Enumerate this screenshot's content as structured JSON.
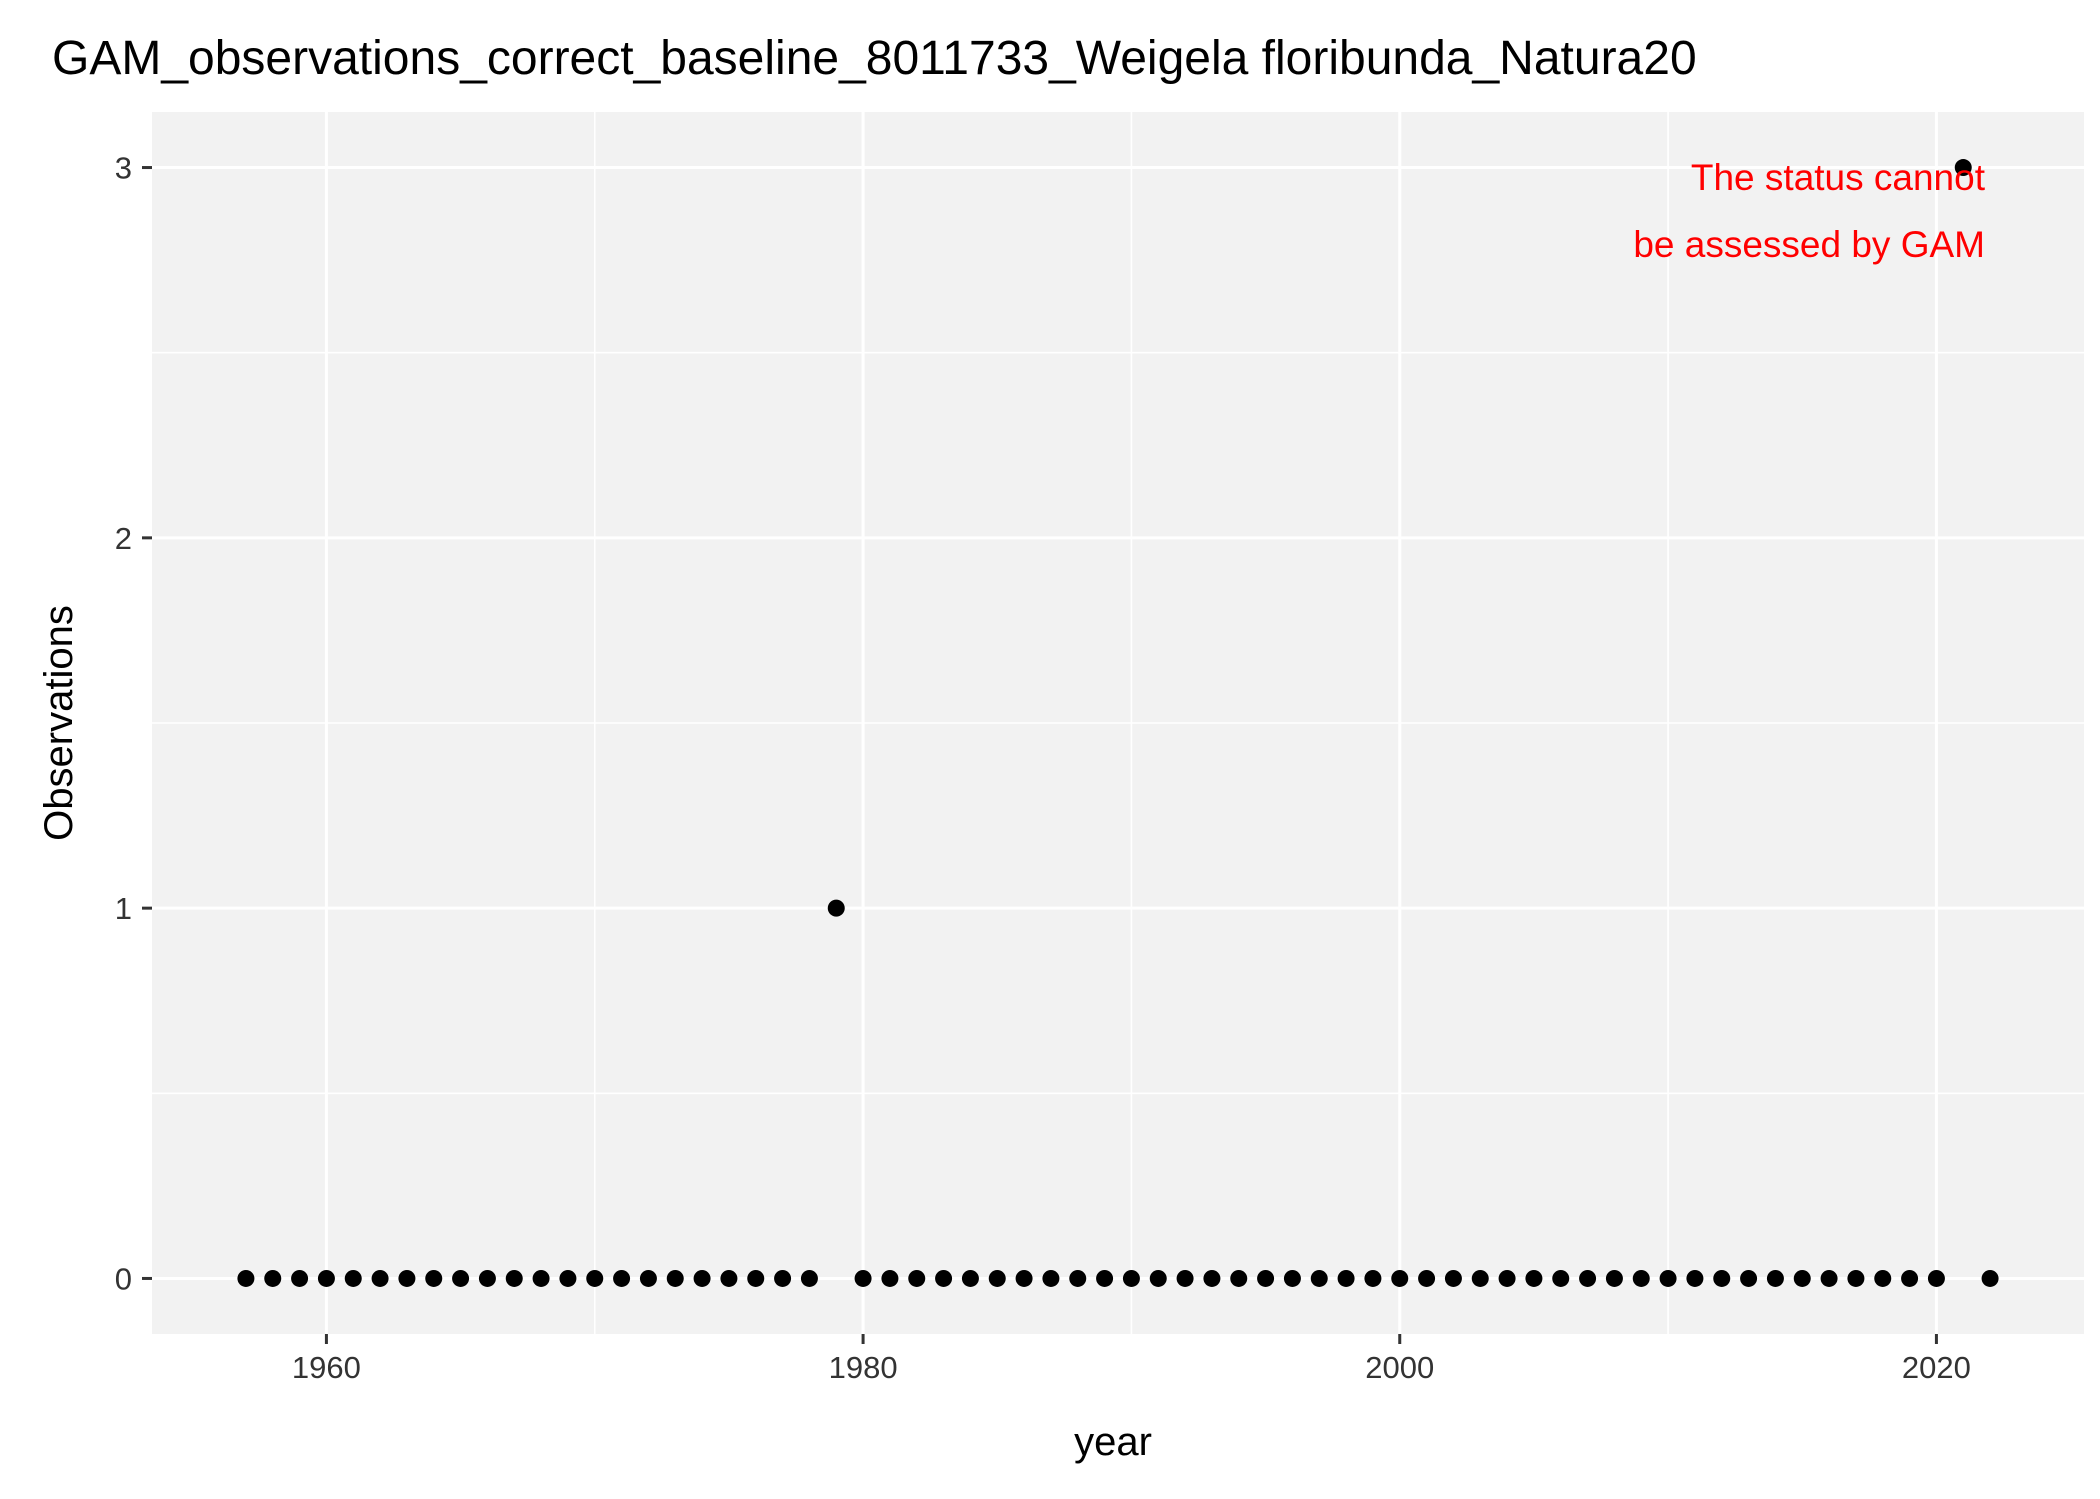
{
  "chart_data": {
    "type": "scatter",
    "title": "GAM_observations_correct_baseline_8011733_Weigela floribunda_Natura20",
    "xlabel": "year",
    "ylabel": "Observations",
    "xlim": [
      1953.5,
      2025.5
    ],
    "ylim": [
      -0.15,
      3.15
    ],
    "x_ticks": [
      1960,
      1980,
      2000,
      2020
    ],
    "x_tick_labels": [
      "1960",
      "1980",
      "2000",
      "2020"
    ],
    "y_ticks": [
      0,
      1,
      2,
      3
    ],
    "y_tick_labels": [
      "0",
      "1",
      "2",
      "3"
    ],
    "grid": true,
    "legend": "none",
    "points": [
      {
        "x": 1957,
        "y": 0
      },
      {
        "x": 1958,
        "y": 0
      },
      {
        "x": 1959,
        "y": 0
      },
      {
        "x": 1960,
        "y": 0
      },
      {
        "x": 1961,
        "y": 0
      },
      {
        "x": 1962,
        "y": 0
      },
      {
        "x": 1963,
        "y": 0
      },
      {
        "x": 1964,
        "y": 0
      },
      {
        "x": 1965,
        "y": 0
      },
      {
        "x": 1966,
        "y": 0
      },
      {
        "x": 1967,
        "y": 0
      },
      {
        "x": 1968,
        "y": 0
      },
      {
        "x": 1969,
        "y": 0
      },
      {
        "x": 1970,
        "y": 0
      },
      {
        "x": 1971,
        "y": 0
      },
      {
        "x": 1972,
        "y": 0
      },
      {
        "x": 1973,
        "y": 0
      },
      {
        "x": 1974,
        "y": 0
      },
      {
        "x": 1975,
        "y": 0
      },
      {
        "x": 1976,
        "y": 0
      },
      {
        "x": 1977,
        "y": 0
      },
      {
        "x": 1978,
        "y": 0
      },
      {
        "x": 1979,
        "y": 1
      },
      {
        "x": 1980,
        "y": 0
      },
      {
        "x": 1981,
        "y": 0
      },
      {
        "x": 1982,
        "y": 0
      },
      {
        "x": 1983,
        "y": 0
      },
      {
        "x": 1984,
        "y": 0
      },
      {
        "x": 1985,
        "y": 0
      },
      {
        "x": 1986,
        "y": 0
      },
      {
        "x": 1987,
        "y": 0
      },
      {
        "x": 1988,
        "y": 0
      },
      {
        "x": 1989,
        "y": 0
      },
      {
        "x": 1990,
        "y": 0
      },
      {
        "x": 1991,
        "y": 0
      },
      {
        "x": 1992,
        "y": 0
      },
      {
        "x": 1993,
        "y": 0
      },
      {
        "x": 1994,
        "y": 0
      },
      {
        "x": 1995,
        "y": 0
      },
      {
        "x": 1996,
        "y": 0
      },
      {
        "x": 1997,
        "y": 0
      },
      {
        "x": 1998,
        "y": 0
      },
      {
        "x": 1999,
        "y": 0
      },
      {
        "x": 2000,
        "y": 0
      },
      {
        "x": 2001,
        "y": 0
      },
      {
        "x": 2002,
        "y": 0
      },
      {
        "x": 2003,
        "y": 0
      },
      {
        "x": 2004,
        "y": 0
      },
      {
        "x": 2005,
        "y": 0
      },
      {
        "x": 2006,
        "y": 0
      },
      {
        "x": 2007,
        "y": 0
      },
      {
        "x": 2008,
        "y": 0
      },
      {
        "x": 2009,
        "y": 0
      },
      {
        "x": 2010,
        "y": 0
      },
      {
        "x": 2011,
        "y": 0
      },
      {
        "x": 2012,
        "y": 0
      },
      {
        "x": 2013,
        "y": 0
      },
      {
        "x": 2014,
        "y": 0
      },
      {
        "x": 2015,
        "y": 0
      },
      {
        "x": 2016,
        "y": 0
      },
      {
        "x": 2017,
        "y": 0
      },
      {
        "x": 2018,
        "y": 0
      },
      {
        "x": 2019,
        "y": 0
      },
      {
        "x": 2020,
        "y": 0
      },
      {
        "x": 2021,
        "y": 3
      },
      {
        "x": 2022,
        "y": 0
      }
    ],
    "annotation": {
      "lines": [
        "The status cannot",
        "be assessed by GAM"
      ],
      "color": "#ff0000"
    },
    "colors": {
      "panel_background": "#f2f2f2",
      "grid_line": "#ffffff",
      "point": "#000000",
      "tick_mark": "#333333"
    }
  }
}
